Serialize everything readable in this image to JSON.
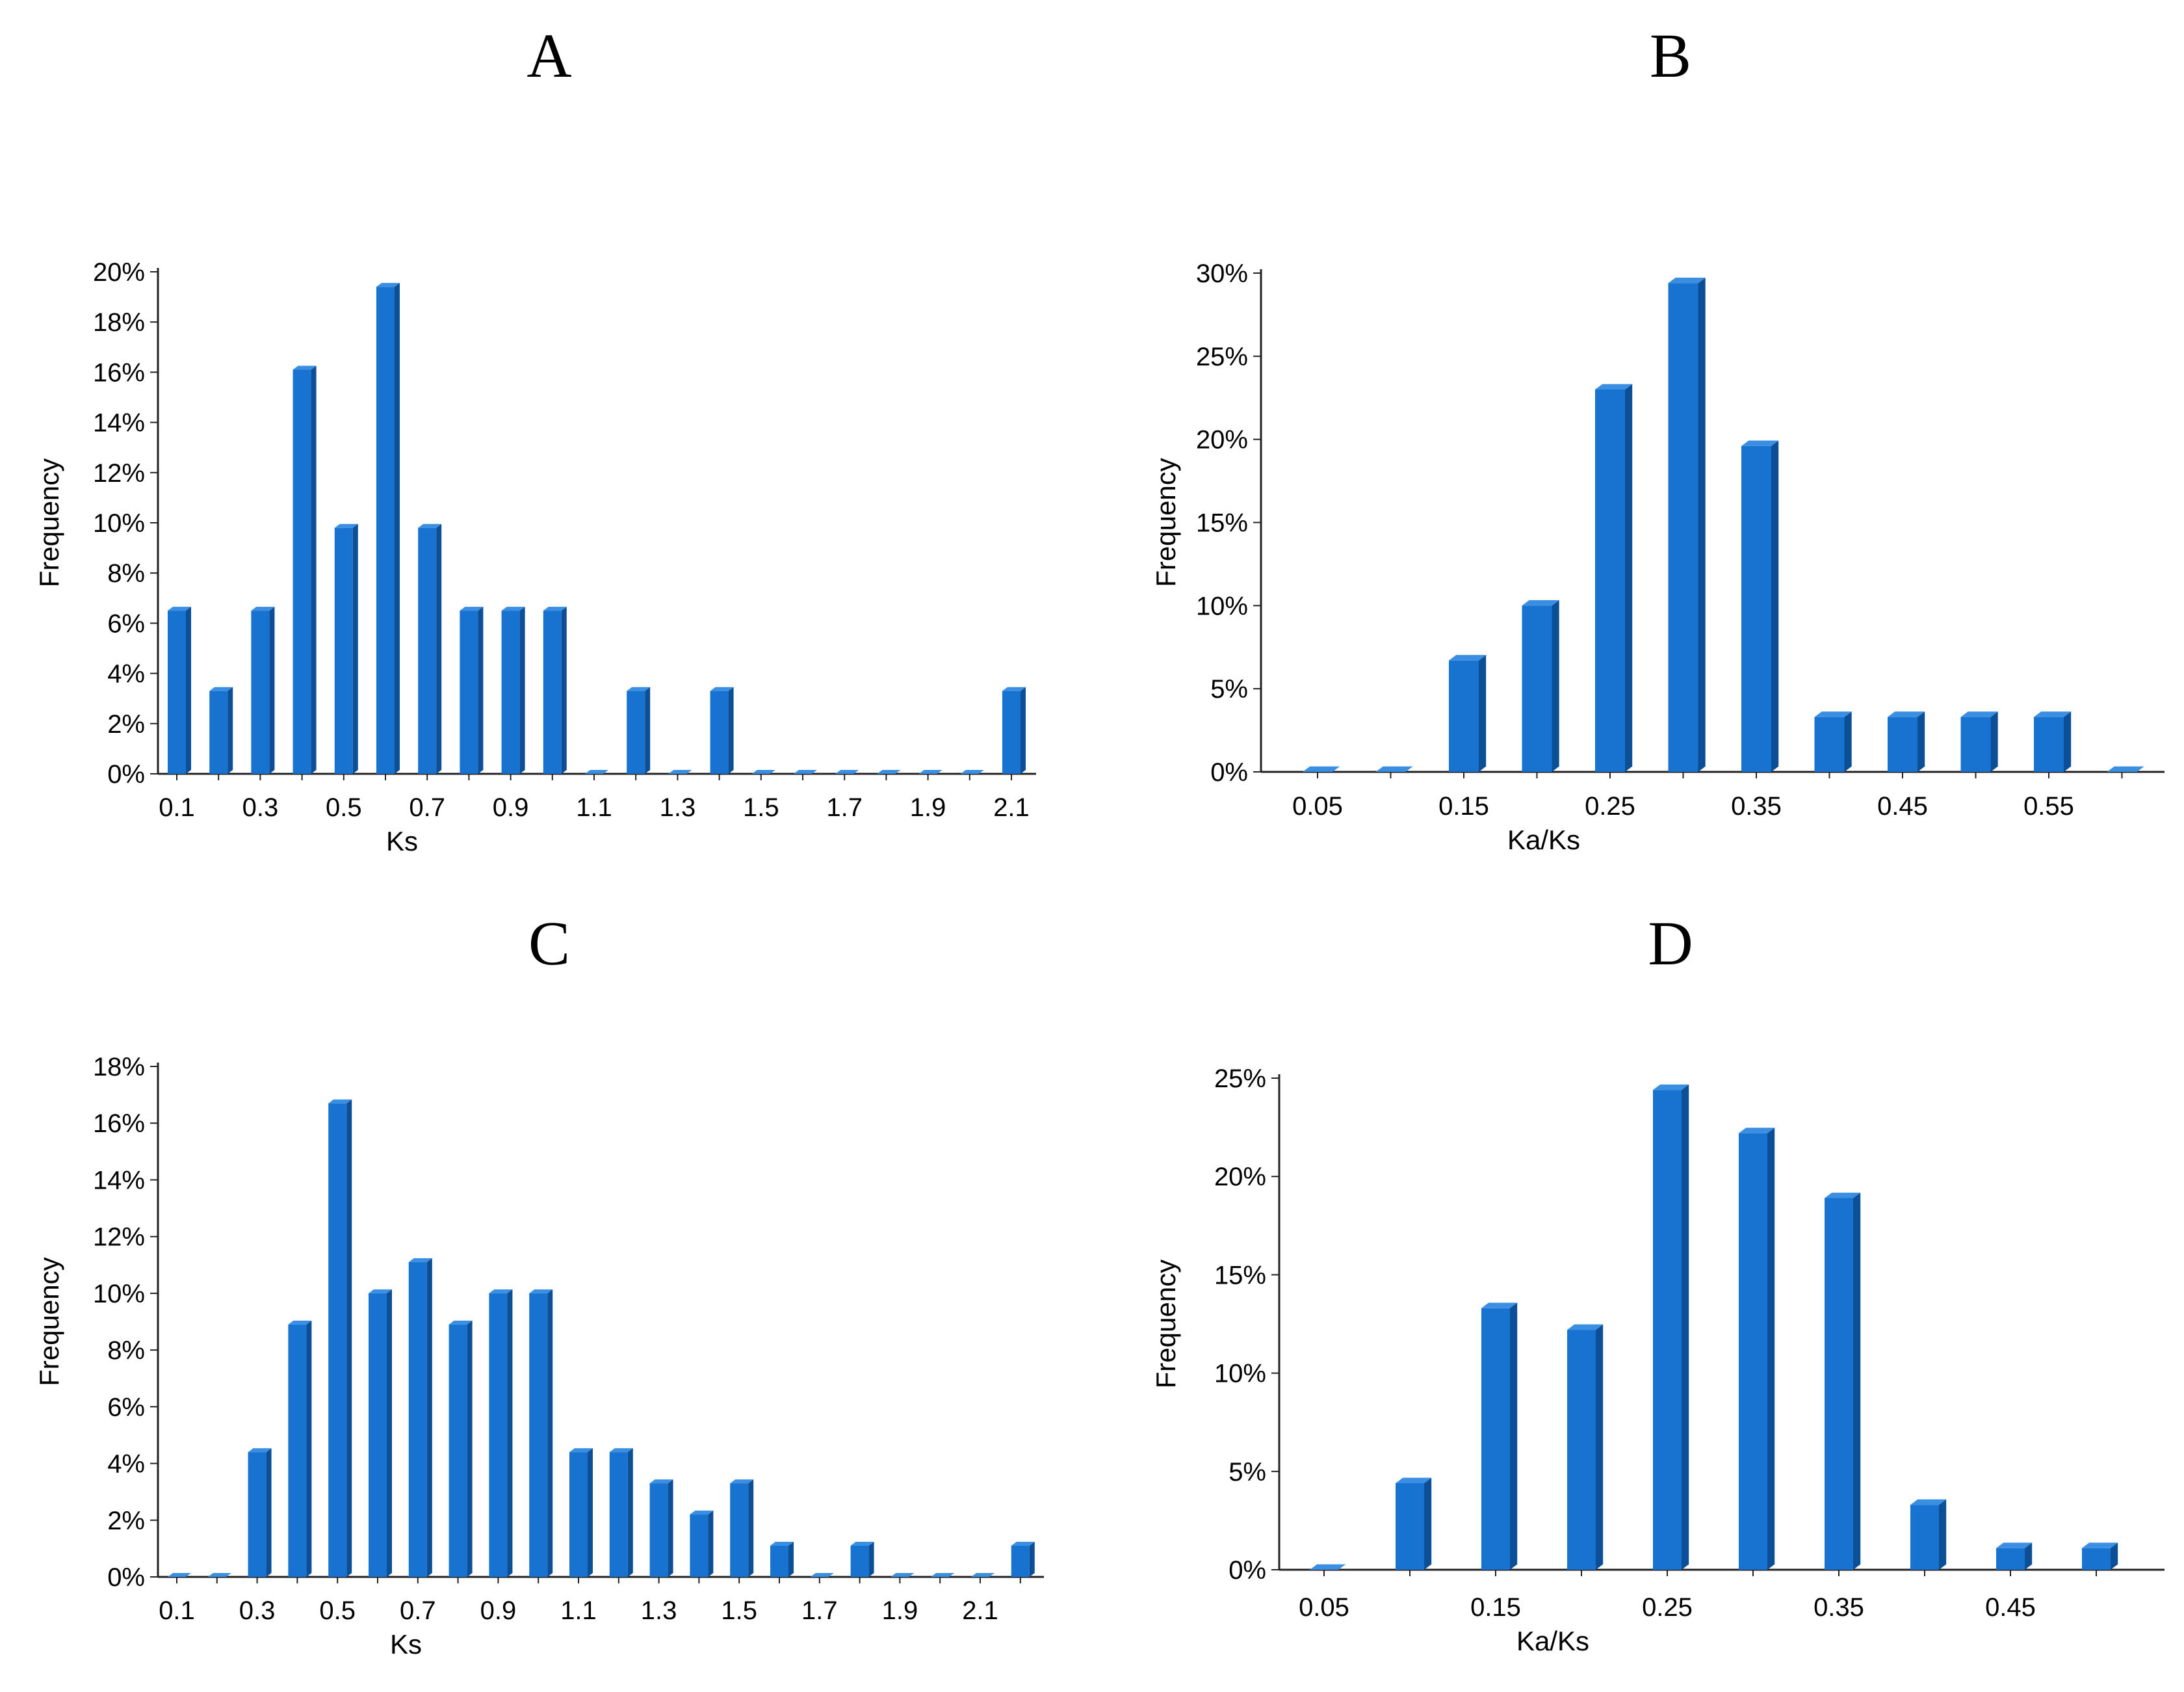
{
  "figure": {
    "panels": [
      "A",
      "B",
      "C",
      "D"
    ],
    "bar_color": "#1873d0",
    "bar_side_color": "#0d4f96",
    "bar_top_color": "#3b8fe2",
    "axis_color": "#222222"
  },
  "chart_data": [
    {
      "panel": "A",
      "type": "bar",
      "title": "A",
      "xlabel": "Ks",
      "ylabel": "Frequency",
      "ylim": [
        0,
        20
      ],
      "yticks": [
        0,
        2,
        4,
        6,
        8,
        10,
        12,
        14,
        16,
        18,
        20
      ],
      "ytick_labels": [
        "0%",
        "2%",
        "4%",
        "6%",
        "8%",
        "10%",
        "12%",
        "14%",
        "16%",
        "18%",
        "20%"
      ],
      "categories": [
        "0.1",
        "0.2",
        "0.3",
        "0.4",
        "0.5",
        "0.6",
        "0.7",
        "0.8",
        "0.9",
        "1.0",
        "1.1",
        "1.2",
        "1.3",
        "1.4",
        "1.5",
        "1.6",
        "1.7",
        "1.8",
        "1.9",
        "2.0",
        "2.1"
      ],
      "xtick_labels": [
        "0.1",
        "0.3",
        "0.5",
        "0.7",
        "0.9",
        "1.1",
        "1.3",
        "1.5",
        "1.7",
        "1.9",
        "2.1"
      ],
      "values": [
        6.5,
        3.3,
        6.5,
        16.1,
        9.8,
        19.4,
        9.8,
        6.5,
        6.5,
        6.5,
        0,
        3.3,
        0,
        3.3,
        0,
        0,
        0,
        0,
        0,
        0,
        3.3
      ]
    },
    {
      "panel": "B",
      "type": "bar",
      "title": "B",
      "xlabel": "Ka/Ks",
      "ylabel": "Frequency",
      "ylim": [
        0,
        30
      ],
      "yticks": [
        0,
        5,
        10,
        15,
        20,
        25,
        30
      ],
      "ytick_labels": [
        "0%",
        "5%",
        "10%",
        "15%",
        "20%",
        "25%",
        "30%"
      ],
      "categories": [
        "0.05",
        "0.10",
        "0.15",
        "0.20",
        "0.25",
        "0.30",
        "0.35",
        "0.40",
        "0.45",
        "0.50",
        "0.55",
        "0.60"
      ],
      "xtick_labels": [
        "0.05",
        "0.15",
        "0.25",
        "0.35",
        "0.45",
        "0.55"
      ],
      "values": [
        0,
        0,
        6.7,
        10.0,
        23.0,
        29.4,
        19.6,
        3.3,
        3.3,
        3.3,
        3.3,
        0
      ]
    },
    {
      "panel": "C",
      "type": "bar",
      "title": "C",
      "xlabel": "Ks",
      "ylabel": "Frequency",
      "ylim": [
        0,
        18
      ],
      "yticks": [
        0,
        2,
        4,
        6,
        8,
        10,
        12,
        14,
        16,
        18
      ],
      "ytick_labels": [
        "0%",
        "2%",
        "4%",
        "6%",
        "8%",
        "10%",
        "12%",
        "14%",
        "16%",
        "18%"
      ],
      "categories": [
        "0.1",
        "0.2",
        "0.3",
        "0.4",
        "0.5",
        "0.6",
        "0.7",
        "0.8",
        "0.9",
        "1.0",
        "1.1",
        "1.2",
        "1.3",
        "1.4",
        "1.5",
        "1.6",
        "1.7",
        "1.8",
        "1.9",
        "2.0",
        "2.1",
        "2.2"
      ],
      "xtick_labels": [
        "0.1",
        "0.3",
        "0.5",
        "0.7",
        "0.9",
        "1.1",
        "1.3",
        "1.5",
        "1.7",
        "1.9",
        "2.1"
      ],
      "values": [
        0,
        0,
        4.4,
        8.9,
        16.7,
        10.0,
        11.1,
        8.9,
        10.0,
        10.0,
        4.4,
        4.4,
        3.3,
        2.2,
        3.3,
        1.1,
        0,
        1.1,
        0,
        0,
        0,
        1.1
      ]
    },
    {
      "panel": "D",
      "type": "bar",
      "title": "D",
      "xlabel": "Ka/Ks",
      "ylabel": "Frequency",
      "ylim": [
        0,
        25
      ],
      "yticks": [
        0,
        5,
        10,
        15,
        20,
        25
      ],
      "ytick_labels": [
        "0%",
        "5%",
        "10%",
        "15%",
        "20%",
        "25%"
      ],
      "categories": [
        "0.05",
        "0.10",
        "0.15",
        "0.20",
        "0.25",
        "0.30",
        "0.35",
        "0.40",
        "0.45",
        "0.50"
      ],
      "xtick_labels": [
        "0.05",
        "0.15",
        "0.25",
        "0.35",
        "0.45"
      ],
      "values": [
        0,
        4.4,
        13.3,
        12.2,
        24.4,
        22.2,
        18.9,
        3.3,
        1.1,
        1.1
      ]
    }
  ]
}
